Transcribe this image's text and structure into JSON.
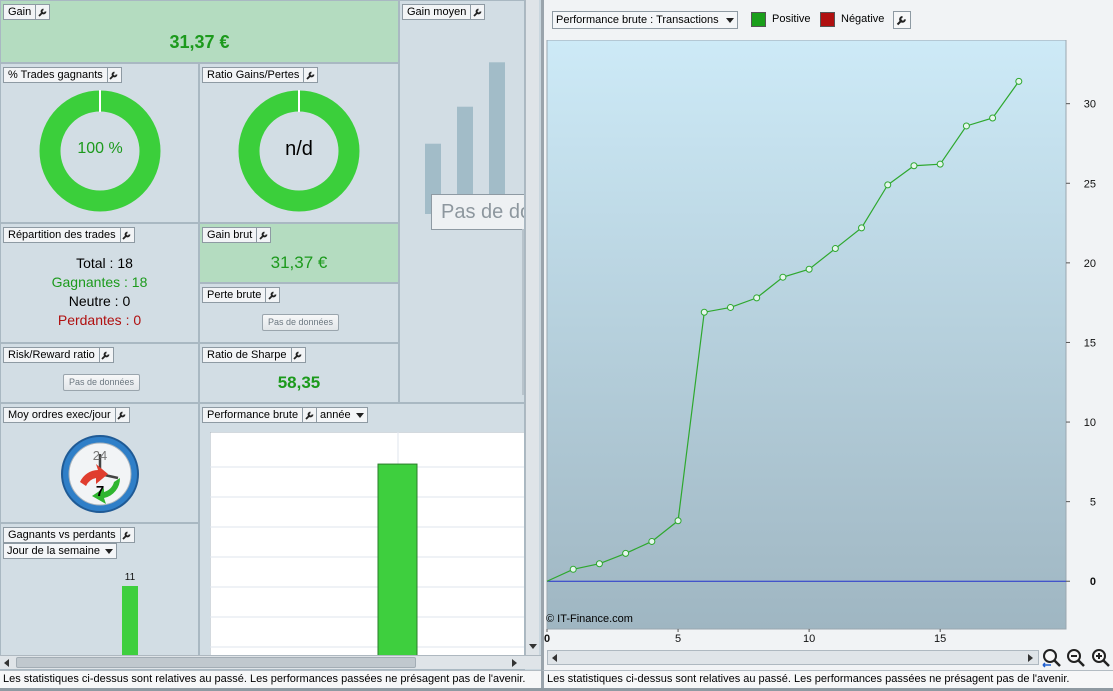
{
  "panels": {
    "gain": {
      "title": "Gain",
      "value": "31,37 €"
    },
    "gain_moyen": {
      "title": "Gain moyen",
      "overlay": "Pas de données"
    },
    "pct_trades": {
      "title": "% Trades gagnants",
      "value": "100 %",
      "fraction": 1.0
    },
    "ratio": {
      "title": "Ratio Gains/Pertes",
      "value": "n/d",
      "fraction": 1.0
    },
    "repartition": {
      "title": "Répartition des trades",
      "total": "Total : 18",
      "gagnantes": "Gagnantes : 18",
      "neutre": "Neutre : 0",
      "perdantes": "Perdantes : 0"
    },
    "gain_brut": {
      "title": "Gain brut",
      "value": "31,37 €"
    },
    "perte_brute": {
      "title": "Perte brute",
      "nodata": "Pas de données"
    },
    "risk_reward": {
      "title": "Risk/Reward ratio",
      "nodata": "Pas de données"
    },
    "sharpe": {
      "title": "Ratio de Sharpe",
      "value": "58,35"
    },
    "moy_ordres": {
      "title": "Moy ordres exec/jour",
      "clock_top": "24",
      "clock_value": "7"
    },
    "perf_brute": {
      "title": "Performance brute",
      "period": "année"
    },
    "gagnants_perdants": {
      "title": "Gagnants vs perdants",
      "dropdown": "Jour de la semaine",
      "bar_label": "11"
    }
  },
  "footer_text": "Les statistiques ci-dessus sont relatives au passé. Les performances passées ne présagent pas de l'avenir.",
  "right": {
    "select": "Performance brute : Transactions",
    "legend_positive": "Positive",
    "legend_negative": "Négative",
    "copyright": "© IT-Finance.com",
    "colors": {
      "positive": "#1a9e1a",
      "negative": "#b01010",
      "line": "#2ea82e"
    }
  },
  "chart_data": [
    {
      "type": "line",
      "x": [
        0,
        1,
        2,
        3,
        4,
        5,
        6,
        7,
        8,
        9,
        10,
        11,
        12,
        13,
        14,
        15,
        16,
        17,
        18
      ],
      "y": [
        0,
        0.75,
        1.1,
        1.75,
        2.5,
        3.8,
        16.9,
        17.2,
        17.8,
        19.1,
        19.6,
        20.9,
        22.2,
        24.9,
        26.1,
        26.2,
        28.6,
        29.1,
        31.4
      ],
      "x_ticks": [
        "0",
        "5",
        "10",
        "15"
      ],
      "y_ticks": [
        "0",
        "5",
        "10",
        "15",
        "20",
        "25",
        "30"
      ],
      "xlim": [
        0,
        19.8
      ],
      "ylim": [
        -3,
        34
      ],
      "grid": false,
      "legend": "top-left"
    },
    {
      "type": "bar",
      "title": "Gain moyen",
      "values": [
        0.38,
        0.58,
        0.82
      ],
      "ylim": [
        0,
        1
      ]
    },
    {
      "type": "bar",
      "title": "Performance brute",
      "values": [
        0.87
      ],
      "ylim": [
        0,
        1
      ]
    },
    {
      "type": "bar",
      "title": "Gagnants vs perdants",
      "values": [
        11
      ],
      "data_labels": [
        "11"
      ]
    }
  ]
}
